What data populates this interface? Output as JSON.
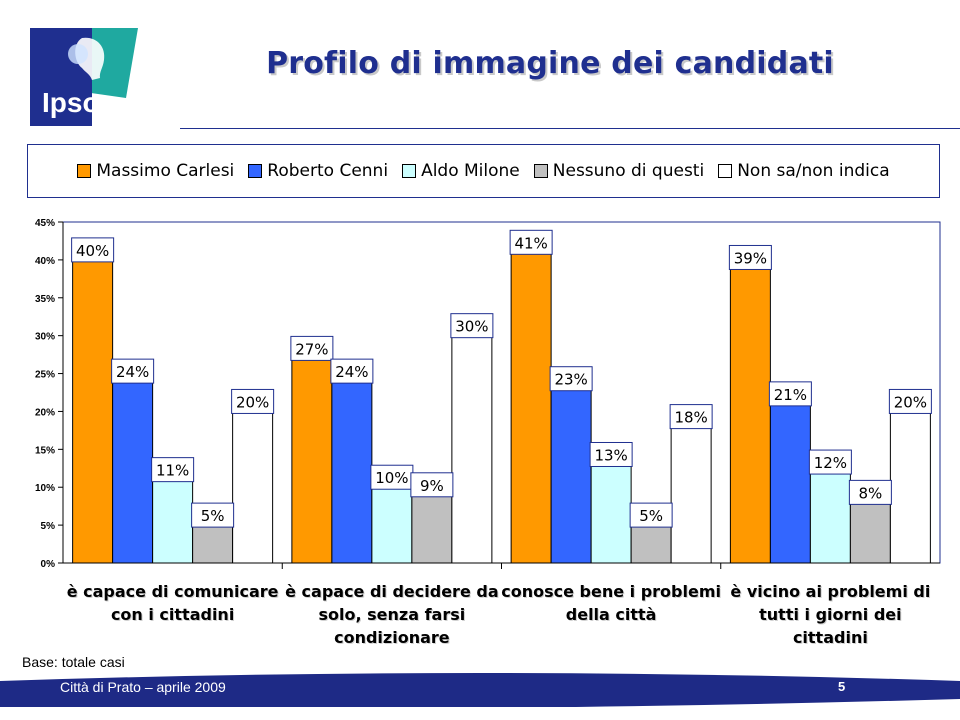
{
  "header": {
    "logo_text": "Ipsos",
    "title": "Profilo di immagine dei candidati"
  },
  "colors": {
    "brand_blue": "#1f2f8f",
    "logo_teal": "#1fa9a0",
    "footer_blue": "#1e2a86"
  },
  "chart_data": {
    "type": "bar",
    "categories": [
      "è capace di comunicare con i cittadini",
      "è capace di decidere da solo, senza farsi condizionare",
      "conosce bene i problemi della città",
      "è vicino ai problemi di tutti i giorni dei cittadini"
    ],
    "series": [
      {
        "name": "Massimo Carlesi",
        "color": "#ff9900",
        "values": [
          40,
          27,
          41,
          39
        ]
      },
      {
        "name": "Roberto Cenni",
        "color": "#3366ff",
        "values": [
          24,
          24,
          23,
          21
        ]
      },
      {
        "name": "Aldo Milone",
        "color": "#ccffff",
        "values": [
          11,
          10,
          13,
          12
        ]
      },
      {
        "name": "Nessuno di questi",
        "color": "#c0c0c0",
        "values": [
          5,
          9,
          5,
          8
        ]
      },
      {
        "name": "Non sa/non indica",
        "color": "#ffffff",
        "values": [
          20,
          30,
          18,
          20
        ]
      }
    ],
    "ylim": [
      0,
      45
    ],
    "yticks": [
      "0%",
      "5%",
      "10%",
      "15%",
      "20%",
      "25%",
      "30%",
      "35%",
      "40%",
      "45%"
    ],
    "value_suffix": "%",
    "legend": "top",
    "grid": false
  },
  "notes": {
    "base": "Base: totale casi"
  },
  "footer": {
    "left_text": "Città di Prato – aprile 2009",
    "page_number": "5"
  }
}
